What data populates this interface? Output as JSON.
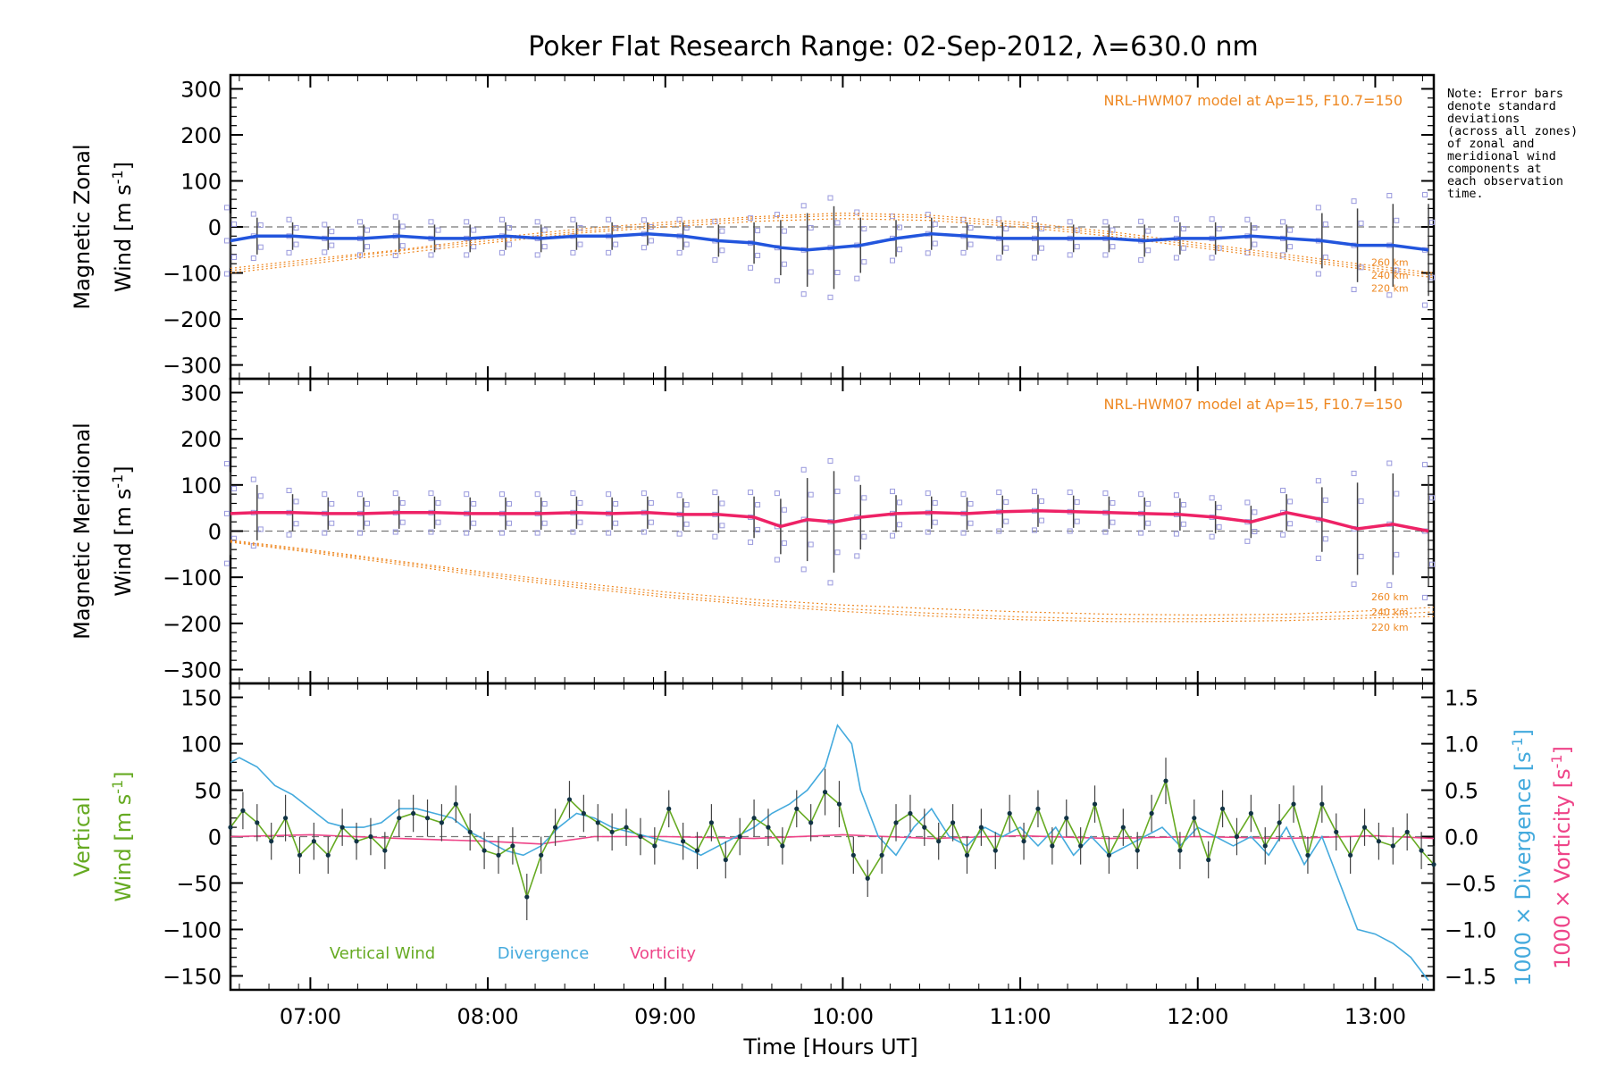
{
  "title": "Poker Flat Research Range: 02-Sep-2012, λ=630.0 nm",
  "note": "Note: Error bars\ndenote standard\ndeviations\n(across all zones)\nof zonal and\nmeridional wind\ncomponents at\neach observation\ntime.",
  "colors": {
    "zonal": "#2255dd",
    "meridional": "#ee2266",
    "model": "#ee8822",
    "samples": "#9999dd",
    "vertical": "#66aa22",
    "divergence": "#44aadd",
    "vorticity": "#ee4488",
    "errorbar": "#444444",
    "dashed": "#777777"
  },
  "chart_data": [
    {
      "type": "line",
      "panel": "zonal",
      "ylabel_line1": "Magnetic Zonal",
      "ylabel_line2": "Wind [m s",
      "ylabel_unit_exp": "-1",
      "ylabel_close": "]",
      "ylim": [
        -330,
        330
      ],
      "yticks": [
        300,
        200,
        100,
        0,
        -100,
        -200,
        -300
      ],
      "ytick_labels": [
        "300",
        "200",
        "100",
        "0",
        "−100",
        "−200",
        "−300"
      ],
      "model_label": "NRL-HWM07 model at Ap=15, F10.7=150",
      "model_alt_labels": [
        "260 km",
        "240 km",
        "220 km"
      ],
      "series": [
        {
          "role": "zonal-wind",
          "x": [
            6.55,
            6.7,
            6.9,
            7.1,
            7.3,
            7.5,
            7.7,
            7.9,
            8.1,
            8.3,
            8.5,
            8.7,
            8.9,
            9.1,
            9.3,
            9.5,
            9.65,
            9.8,
            9.95,
            10.1,
            10.3,
            10.5,
            10.7,
            10.9,
            11.1,
            11.3,
            11.5,
            11.7,
            11.9,
            12.1,
            12.3,
            12.5,
            12.7,
            12.9,
            13.1,
            13.3
          ],
          "y": [
            -30,
            -20,
            -20,
            -25,
            -25,
            -20,
            -25,
            -25,
            -20,
            -25,
            -20,
            -20,
            -15,
            -20,
            -30,
            -35,
            -45,
            -50,
            -45,
            -40,
            -25,
            -15,
            -20,
            -25,
            -25,
            -25,
            -25,
            -30,
            -25,
            -25,
            -20,
            -25,
            -30,
            -40,
            -40,
            -50
          ],
          "err": [
            60,
            40,
            30,
            25,
            30,
            35,
            30,
            30,
            30,
            30,
            30,
            30,
            25,
            30,
            35,
            45,
            60,
            80,
            90,
            60,
            40,
            35,
            30,
            35,
            35,
            30,
            30,
            35,
            35,
            35,
            30,
            30,
            60,
            80,
            90,
            100
          ]
        },
        {
          "role": "model-curves",
          "x": [
            6.55,
            7.0,
            7.5,
            8.0,
            8.5,
            9.0,
            9.5,
            10.0,
            10.5,
            11.0,
            11.5,
            12.0,
            12.5,
            13.0,
            13.33
          ],
          "series": [
            {
              "alt": "260 km",
              "y": [
                -90,
                -70,
                -50,
                -25,
                -5,
                10,
                22,
                30,
                25,
                10,
                -10,
                -35,
                -60,
                -85,
                -100
              ]
            },
            {
              "alt": "240 km",
              "y": [
                -95,
                -75,
                -52,
                -30,
                -10,
                5,
                18,
                25,
                20,
                5,
                -15,
                -40,
                -65,
                -90,
                -105
              ]
            },
            {
              "alt": "220 km",
              "y": [
                -100,
                -80,
                -58,
                -35,
                -14,
                0,
                12,
                18,
                14,
                0,
                -20,
                -45,
                -70,
                -95,
                -110
              ]
            }
          ]
        }
      ]
    },
    {
      "type": "line",
      "panel": "meridional",
      "ylabel_line1": "Magnetic Meridional",
      "ylabel_line2": "Wind [m s",
      "ylabel_unit_exp": "-1",
      "ylabel_close": "]",
      "ylim": [
        -330,
        330
      ],
      "yticks": [
        300,
        200,
        100,
        0,
        -100,
        -200,
        -300
      ],
      "ytick_labels": [
        "300",
        "200",
        "100",
        "0",
        "−100",
        "−200",
        "−300"
      ],
      "model_label": "NRL-HWM07 model at Ap=15, F10.7=150",
      "model_alt_labels": [
        "260 km",
        "240 km",
        "220 km"
      ],
      "series": [
        {
          "role": "meridional-wind",
          "x": [
            6.55,
            6.7,
            6.9,
            7.1,
            7.3,
            7.5,
            7.7,
            7.9,
            8.1,
            8.3,
            8.5,
            8.7,
            8.9,
            9.1,
            9.3,
            9.5,
            9.65,
            9.8,
            9.95,
            10.1,
            10.3,
            10.5,
            10.7,
            10.9,
            11.1,
            11.3,
            11.5,
            11.7,
            11.9,
            12.1,
            12.3,
            12.5,
            12.7,
            12.9,
            13.1,
            13.3
          ],
          "y": [
            38,
            40,
            40,
            38,
            38,
            40,
            40,
            38,
            38,
            38,
            40,
            38,
            40,
            36,
            36,
            30,
            10,
            25,
            20,
            30,
            38,
            40,
            38,
            42,
            44,
            42,
            40,
            38,
            36,
            30,
            20,
            40,
            25,
            5,
            15,
            0
          ],
          "err": [
            90,
            60,
            40,
            35,
            35,
            35,
            35,
            35,
            35,
            35,
            35,
            35,
            35,
            35,
            40,
            45,
            60,
            90,
            110,
            70,
            40,
            35,
            35,
            35,
            35,
            35,
            35,
            35,
            35,
            35,
            35,
            40,
            70,
            100,
            110,
            120
          ]
        },
        {
          "role": "model-curves",
          "x": [
            6.55,
            7.0,
            7.5,
            8.0,
            8.5,
            9.0,
            9.5,
            10.0,
            10.5,
            11.0,
            11.5,
            12.0,
            12.5,
            13.0,
            13.33
          ],
          "series": [
            {
              "alt": "260 km",
              "y": [
                -20,
                -40,
                -65,
                -90,
                -112,
                -132,
                -148,
                -160,
                -168,
                -175,
                -180,
                -182,
                -180,
                -172,
                -165
              ]
            },
            {
              "alt": "240 km",
              "y": [
                -22,
                -43,
                -68,
                -94,
                -117,
                -138,
                -155,
                -168,
                -178,
                -186,
                -190,
                -190,
                -188,
                -182,
                -175
              ]
            },
            {
              "alt": "220 km",
              "y": [
                -24,
                -46,
                -72,
                -99,
                -122,
                -143,
                -160,
                -174,
                -184,
                -192,
                -196,
                -196,
                -194,
                -188,
                -185
              ]
            }
          ]
        }
      ]
    },
    {
      "type": "line",
      "panel": "vertical",
      "ylabel_left_line1": "Vertical",
      "ylabel_left_line2": "Wind [m s",
      "ylabel_left_exp": "-1",
      "ylabel_left_close": "]",
      "ylabel_right1": "1000 × Divergence [s",
      "ylabel_right1_exp": "-1",
      "ylabel_right2": "1000 × Vorticity [s",
      "ylabel_right2_exp": "-1",
      "ylabel_right_close": "]",
      "ylim": [
        -165,
        165
      ],
      "yticks": [
        150,
        100,
        50,
        0,
        -50,
        -100,
        -150
      ],
      "ytick_labels": [
        "150",
        "100",
        "50",
        "0",
        "−50",
        "−100",
        "−150"
      ],
      "ylim_right": [
        -1.65,
        1.65
      ],
      "yticks_right": [
        1.5,
        1.0,
        0.5,
        0.0,
        -0.5,
        -1.0,
        -1.5
      ],
      "ytick_right_labels": [
        "1.5",
        "1.0",
        "0.5",
        "0.0",
        "−0.5",
        "−1.0",
        "−1.5"
      ],
      "xlabel": "Time [Hours UT]",
      "xlim": [
        6.55,
        13.33
      ],
      "xticks": [
        7,
        8,
        9,
        10,
        11,
        12,
        13
      ],
      "xtick_labels": [
        "07:00",
        "08:00",
        "09:00",
        "10:00",
        "11:00",
        "12:00",
        "13:00"
      ],
      "legend": [
        "Vertical Wind",
        "Divergence",
        "Vorticity"
      ],
      "series": [
        {
          "name": "Vertical Wind",
          "x": [
            6.55,
            6.62,
            6.7,
            6.78,
            6.86,
            6.94,
            7.02,
            7.1,
            7.18,
            7.26,
            7.34,
            7.42,
            7.5,
            7.58,
            7.66,
            7.74,
            7.82,
            7.9,
            7.98,
            8.06,
            8.14,
            8.22,
            8.3,
            8.38,
            8.46,
            8.54,
            8.62,
            8.7,
            8.78,
            8.86,
            8.94,
            9.02,
            9.1,
            9.18,
            9.26,
            9.34,
            9.42,
            9.5,
            9.58,
            9.66,
            9.74,
            9.82,
            9.9,
            9.98,
            10.06,
            10.14,
            10.22,
            10.3,
            10.38,
            10.46,
            10.54,
            10.62,
            10.7,
            10.78,
            10.86,
            10.94,
            11.02,
            11.1,
            11.18,
            11.26,
            11.34,
            11.42,
            11.5,
            11.58,
            11.66,
            11.74,
            11.82,
            11.9,
            11.98,
            12.06,
            12.14,
            12.22,
            12.3,
            12.38,
            12.46,
            12.54,
            12.62,
            12.7,
            12.78,
            12.86,
            12.94,
            13.02,
            13.1,
            13.18,
            13.26,
            13.33
          ],
          "y": [
            10,
            28,
            15,
            -5,
            20,
            -20,
            -5,
            -20,
            10,
            -5,
            0,
            -15,
            20,
            25,
            20,
            15,
            35,
            5,
            -15,
            -20,
            -10,
            -65,
            -20,
            10,
            40,
            25,
            15,
            5,
            10,
            0,
            -10,
            30,
            -5,
            -15,
            15,
            -25,
            0,
            20,
            10,
            -10,
            30,
            15,
            48,
            35,
            -20,
            -45,
            -20,
            15,
            25,
            10,
            -5,
            15,
            -20,
            10,
            -15,
            25,
            -5,
            30,
            -10,
            20,
            -10,
            35,
            -20,
            10,
            -15,
            25,
            60,
            -15,
            20,
            -25,
            30,
            0,
            25,
            -10,
            15,
            35,
            -20,
            35,
            5,
            -20,
            10,
            -5,
            -10,
            5,
            -15,
            -30
          ],
          "err": [
            25,
            20,
            20,
            20,
            25,
            20,
            20,
            20,
            20,
            20,
            20,
            20,
            20,
            20,
            20,
            20,
            20,
            20,
            20,
            20,
            20,
            25,
            20,
            20,
            20,
            20,
            20,
            20,
            20,
            20,
            20,
            20,
            20,
            20,
            20,
            20,
            20,
            20,
            20,
            20,
            20,
            20,
            25,
            25,
            20,
            20,
            20,
            20,
            20,
            20,
            20,
            20,
            20,
            20,
            20,
            20,
            20,
            20,
            20,
            20,
            20,
            20,
            20,
            20,
            20,
            20,
            25,
            20,
            20,
            20,
            20,
            20,
            20,
            20,
            20,
            20,
            20,
            20,
            20,
            20,
            20,
            20,
            20,
            20,
            20,
            20
          ]
        },
        {
          "name": "Divergence",
          "x": [
            6.55,
            6.6,
            6.7,
            6.8,
            6.9,
            7.0,
            7.1,
            7.2,
            7.3,
            7.4,
            7.5,
            7.6,
            7.7,
            7.8,
            7.9,
            8.0,
            8.1,
            8.2,
            8.3,
            8.4,
            8.5,
            8.6,
            8.7,
            8.8,
            8.9,
            9.0,
            9.1,
            9.2,
            9.3,
            9.4,
            9.5,
            9.6,
            9.7,
            9.8,
            9.9,
            9.97,
            10.05,
            10.1,
            10.2,
            10.3,
            10.4,
            10.5,
            10.6,
            10.7,
            10.8,
            10.9,
            11.0,
            11.1,
            11.2,
            11.3,
            11.4,
            11.5,
            11.6,
            11.7,
            11.8,
            11.9,
            12.0,
            12.1,
            12.2,
            12.3,
            12.4,
            12.5,
            12.6,
            12.7,
            12.8,
            12.9,
            13.0,
            13.1,
            13.2,
            13.3
          ],
          "y": [
            0.8,
            0.85,
            0.75,
            0.55,
            0.45,
            0.3,
            0.15,
            0.1,
            0.1,
            0.15,
            0.3,
            0.3,
            0.25,
            0.2,
            0.05,
            -0.05,
            -0.15,
            -0.2,
            -0.1,
            0.1,
            0.25,
            0.2,
            0.1,
            0.05,
            0.0,
            -0.05,
            -0.1,
            -0.2,
            -0.1,
            0.0,
            0.1,
            0.25,
            0.35,
            0.5,
            0.75,
            1.2,
            1.0,
            0.5,
            0.0,
            -0.2,
            0.1,
            0.3,
            0.0,
            -0.1,
            0.1,
            0.0,
            0.1,
            -0.1,
            0.1,
            -0.2,
            0.0,
            -0.2,
            -0.1,
            0.0,
            0.1,
            -0.1,
            0.1,
            0.0,
            -0.1,
            0.0,
            -0.2,
            0.1,
            -0.3,
            0.0,
            -0.5,
            -1.0,
            -1.05,
            -1.15,
            -1.3,
            -1.55
          ]
        },
        {
          "name": "Vorticity",
          "x": [
            6.55,
            7.0,
            7.5,
            8.0,
            8.3,
            8.6,
            9.0,
            9.5,
            10.0,
            10.5,
            11.0,
            11.5,
            12.0,
            12.5,
            13.0,
            13.33
          ],
          "y": [
            0.0,
            0.02,
            -0.02,
            -0.05,
            -0.08,
            0.0,
            0.0,
            -0.02,
            0.02,
            -0.02,
            0.01,
            -0.02,
            0.0,
            -0.02,
            0.01,
            -0.02
          ]
        }
      ]
    }
  ]
}
